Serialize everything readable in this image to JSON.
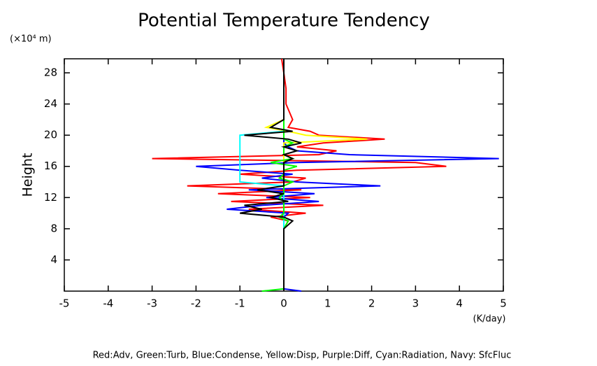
{
  "chart_data": {
    "type": "profile",
    "title": "Potential Temperature Tendency",
    "y_unit_label": "(×10⁴ m)",
    "y_label": "Height",
    "x_unit_label": "(K/day)",
    "footer": "Red:Adv, Green:Turb, Blue:Condense, Yellow:Disp, Purple:Diff, Cyan:Radiation, Navy: SfcFluc",
    "xlim": [
      -5,
      5
    ],
    "xticks": [
      -5,
      -4,
      -3,
      -2,
      -1,
      0,
      1,
      2,
      3,
      4,
      5
    ],
    "ylim": [
      0,
      29.8
    ],
    "yticks": [
      4,
      8,
      12,
      16,
      20,
      24,
      28
    ],
    "y": [
      0,
      0.3,
      1,
      4,
      8,
      9,
      9.5,
      10,
      10.5,
      11,
      11.5,
      12,
      12.5,
      13,
      13.5,
      14,
      14.5,
      15,
      15.5,
      16,
      16.5,
      17,
      17.5,
      18,
      18.5,
      19,
      19.5,
      20,
      20.5,
      21,
      22,
      24,
      26,
      28,
      29.8
    ],
    "series": [
      {
        "color": "#ff0000",
        "values": [
          0,
          0,
          0,
          0,
          0,
          0.1,
          -0.3,
          0.5,
          -0.8,
          0.9,
          -1.2,
          0.6,
          -1.5,
          0.4,
          -2.2,
          0.2,
          0.5,
          -1.0,
          0.3,
          3.7,
          3.0,
          -3.0,
          0.8,
          1.2,
          0.3,
          0.9,
          2.3,
          0.8,
          0.6,
          0.1,
          0.2,
          0.05,
          0.05,
          0,
          -0.05
        ]
      },
      {
        "color": "#0000ff",
        "values": [
          0.4,
          0,
          0,
          0,
          0,
          0,
          0,
          0.1,
          -1.3,
          -0.5,
          0.8,
          -0.4,
          0.7,
          -0.8,
          2.2,
          0.3,
          -0.5,
          0.2,
          -1.0,
          -2.0,
          0.3,
          4.9,
          1.5,
          0.3,
          0.1,
          0,
          0,
          0,
          0,
          0,
          0,
          0,
          0,
          0,
          0
        ]
      },
      {
        "color": "#ffff00",
        "values": [
          0,
          0,
          0,
          0,
          0,
          0,
          0,
          0,
          0,
          0,
          0,
          0,
          0,
          0,
          0,
          0,
          0,
          0,
          0,
          0,
          0,
          0,
          0,
          0,
          0,
          0,
          1.9,
          0.5,
          0.1,
          -0.4,
          0,
          0,
          0,
          0,
          0
        ]
      },
      {
        "color": "#00ffff",
        "values": [
          0,
          0,
          0,
          0,
          0,
          0,
          0,
          0,
          0,
          0,
          0,
          0,
          0,
          0,
          0,
          -1,
          -1,
          -1,
          -1,
          -1,
          -1,
          -1,
          -1,
          -1,
          -1,
          -1,
          -1,
          -1,
          0,
          0,
          0,
          0,
          0,
          0,
          0
        ]
      },
      {
        "color": "#00ff00",
        "values": [
          -0.5,
          0,
          0,
          0,
          0,
          0.1,
          -0.1,
          0,
          0,
          0,
          0,
          -0.1,
          0,
          0,
          0,
          0.2,
          -0.1,
          0,
          0,
          0.3,
          -0.3,
          0.2,
          0,
          0,
          0,
          0.2,
          0,
          0,
          0,
          0,
          0,
          0,
          0,
          0,
          0
        ]
      },
      {
        "color": "#000000",
        "values": [
          0,
          0,
          0,
          0,
          0,
          0.2,
          0,
          -1.0,
          -0.5,
          -0.9,
          0.1,
          -0.3,
          0,
          -0.6,
          0,
          0,
          0,
          0,
          0,
          0,
          0,
          0.2,
          0,
          0.3,
          0,
          0.4,
          0.1,
          -0.9,
          0.2,
          -0.3,
          0,
          0,
          0,
          0,
          0
        ]
      }
    ]
  }
}
